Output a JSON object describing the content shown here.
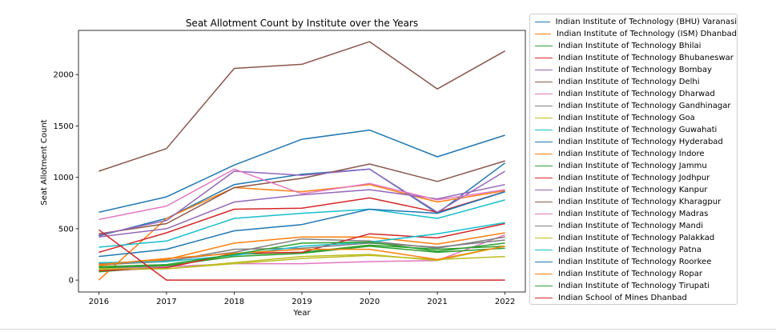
{
  "chart_data": {
    "type": "line",
    "title": "Seat Allotment Count by Institute over the Years",
    "xlabel": "Year",
    "ylabel": "Seat Allotment Count",
    "x": [
      2016,
      2017,
      2018,
      2019,
      2020,
      2021,
      2022
    ],
    "x_ticks": [
      "2016",
      "2017",
      "2018",
      "2019",
      "2020",
      "2021",
      "2022"
    ],
    "y_ticks": [
      "0",
      "500",
      "1000",
      "1500",
      "2000"
    ],
    "xlim": [
      2015.7,
      2022.3
    ],
    "ylim": [
      -116,
      2430
    ],
    "grid": false,
    "legend_position": "outside-right",
    "series": [
      {
        "name": "Indian Institute of Technology (BHU) Varanasi",
        "color": "#1f77b4",
        "values": [
          430,
          600,
          930,
          1030,
          1080,
          650,
          1140
        ]
      },
      {
        "name": "Indian Institute of Technology (ISM) Dhanbad",
        "color": "#ff7f0e",
        "values": [
          0,
          600,
          900,
          860,
          930,
          760,
          870
        ]
      },
      {
        "name": "Indian Institute of Technology Bhilai",
        "color": "#2ca02c",
        "values": [
          80,
          130,
          250,
          270,
          340,
          300,
          330
        ]
      },
      {
        "name": "Indian Institute of Technology Bhubaneswar",
        "color": "#d62728",
        "values": [
          270,
          460,
          690,
          700,
          800,
          660,
          860
        ]
      },
      {
        "name": "Indian Institute of Technology Bombay",
        "color": "#9467bd",
        "values": [
          420,
          500,
          760,
          830,
          880,
          790,
          930
        ]
      },
      {
        "name": "Indian Institute of Technology Delhi",
        "color": "#8c564b",
        "values": [
          450,
          550,
          900,
          990,
          1130,
          960,
          1160
        ]
      },
      {
        "name": "Indian Institute of Technology Dharwad",
        "color": "#e377c2",
        "values": [
          110,
          130,
          160,
          160,
          180,
          190,
          440
        ]
      },
      {
        "name": "Indian Institute of Technology Gandhinagar",
        "color": "#7f7f7f",
        "values": [
          160,
          190,
          270,
          400,
          380,
          310,
          420
        ]
      },
      {
        "name": "Indian Institute of Technology Goa",
        "color": "#bcbd22",
        "values": [
          100,
          110,
          160,
          210,
          240,
          200,
          230
        ]
      },
      {
        "name": "Indian Institute of Technology Guwahati",
        "color": "#17becf",
        "values": [
          320,
          380,
          600,
          650,
          690,
          600,
          780
        ]
      },
      {
        "name": "Indian Institute of Technology Hyderabad",
        "color": "#1f77b4",
        "values": [
          230,
          300,
          480,
          540,
          690,
          650,
          860
        ]
      },
      {
        "name": "Indian Institute of Technology Indore",
        "color": "#ff7f0e",
        "values": [
          140,
          200,
          360,
          420,
          420,
          350,
          460
        ]
      },
      {
        "name": "Indian Institute of Technology Jammu",
        "color": "#2ca02c",
        "values": [
          120,
          140,
          230,
          260,
          330,
          270,
          310
        ]
      },
      {
        "name": "Indian Institute of Technology Jodhpur",
        "color": "#d62728",
        "values": [
          90,
          120,
          260,
          270,
          450,
          410,
          550
        ]
      },
      {
        "name": "Indian Institute of Technology Kanpur",
        "color": "#9467bd",
        "values": [
          440,
          580,
          1060,
          1020,
          1080,
          660,
          1060
        ]
      },
      {
        "name": "Indian Institute of Technology Kharagpur",
        "color": "#8c564b",
        "values": [
          1060,
          1280,
          2060,
          2100,
          2320,
          1860,
          2230
        ]
      },
      {
        "name": "Indian Institute of Technology Madras",
        "color": "#e377c2",
        "values": [
          590,
          720,
          1080,
          840,
          940,
          780,
          880
        ]
      },
      {
        "name": "Indian Institute of Technology Mandi",
        "color": "#7f7f7f",
        "values": [
          150,
          180,
          300,
          310,
          360,
          320,
          390
        ]
      },
      {
        "name": "Indian Institute of Technology Palakkad",
        "color": "#bcbd22",
        "values": [
          110,
          110,
          170,
          230,
          250,
          190,
          330
        ]
      },
      {
        "name": "Indian Institute of Technology Patna",
        "color": "#17becf",
        "values": [
          170,
          180,
          240,
          330,
          370,
          450,
          560
        ]
      },
      {
        "name": "Indian Institute of Technology Roorkee",
        "color": "#1f77b4",
        "values": [
          660,
          810,
          1120,
          1370,
          1460,
          1200,
          1410
        ]
      },
      {
        "name": "Indian Institute of Technology Ropar",
        "color": "#ff7f0e",
        "values": [
          150,
          210,
          260,
          300,
          300,
          200,
          330
        ]
      },
      {
        "name": "Indian Institute of Technology Tirupati",
        "color": "#2ca02c",
        "values": [
          130,
          150,
          250,
          360,
          370,
          280,
          360
        ]
      },
      {
        "name": "Indian School of Mines Dhanbad",
        "color": "#d62728",
        "values": [
          490,
          0,
          0,
          0,
          0,
          0,
          0
        ]
      }
    ]
  }
}
